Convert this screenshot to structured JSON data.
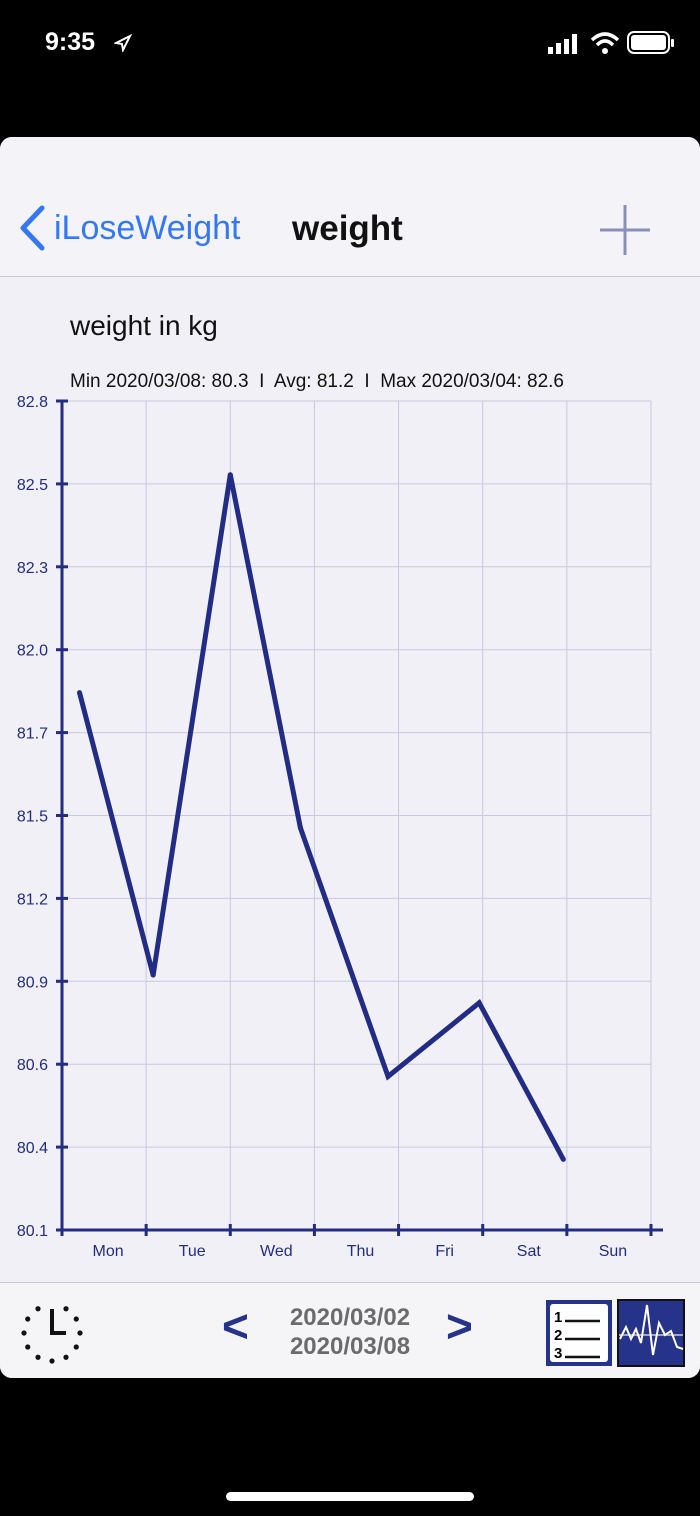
{
  "status_bar": {
    "time": "9:35"
  },
  "nav": {
    "back_label": "iLoseWeight",
    "title": "weight"
  },
  "chart_heading": "weight in kg",
  "stats_line": "Min 2020/03/08: 80.3  I  Avg: 81.2  I  Max 2020/03/04: 82.6",
  "toolbar": {
    "start_date": "2020/03/02",
    "end_date": "2020/03/08",
    "prev": "<",
    "next": ">"
  },
  "colors": {
    "line": "#222c84",
    "accent": "#3478f6",
    "grid": "#c8c8e0"
  },
  "chart_data": {
    "type": "line",
    "title": "weight in kg",
    "ylim": [
      80.1,
      82.8
    ],
    "y_ticks": [
      "82.8",
      "82.5",
      "82.3",
      "82.0",
      "81.7",
      "81.5",
      "81.2",
      "80.9",
      "80.6",
      "80.4",
      "80.1"
    ],
    "x_ticks": [
      "Mon",
      "Tue",
      "Wed",
      "Thu",
      "Fri",
      "Sat",
      "Sun"
    ],
    "grid": true,
    "series": [
      {
        "x": [
          "2020-03-02 05:00",
          "2020-03-03 02:00",
          "2020-03-04 00:00",
          "2020-03-04 20:00",
          "2020-03-05 21:00",
          "2020-03-06 23:00",
          "2020-03-07 23:00"
        ],
        "values": [
          81.85,
          80.93,
          82.56,
          81.41,
          80.6,
          80.84,
          80.33
        ]
      }
    ]
  }
}
